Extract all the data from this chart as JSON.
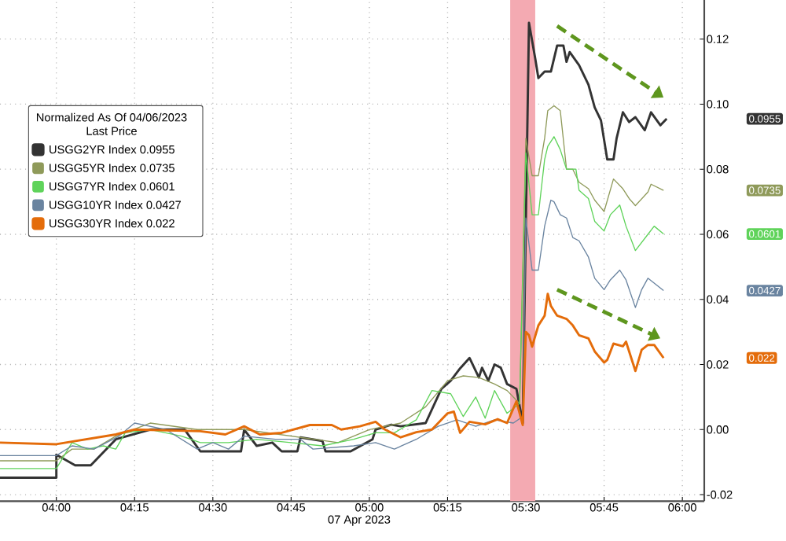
{
  "chart_data": {
    "type": "line",
    "xlabel": "07 Apr 2023",
    "legend_title": "Normalized As Of 04/06/2023 Last Price",
    "legend": "top left",
    "grid": true,
    "marker": "none",
    "line_style": "solid",
    "xlim": [
      3.82,
      6.07
    ],
    "ylim": [
      -0.022,
      0.132
    ],
    "xticks": [
      {
        "value": 4,
        "label": "04:00"
      },
      {
        "value": 4.25,
        "label": "04:15"
      },
      {
        "value": 4.5,
        "label": "04:30"
      },
      {
        "value": 4.75,
        "label": "04:45"
      },
      {
        "value": 5,
        "label": "05:00"
      },
      {
        "value": 5.25,
        "label": "05:15"
      },
      {
        "value": 5.5,
        "label": "05:30"
      },
      {
        "value": 5.75,
        "label": "05:45"
      },
      {
        "value": 6,
        "label": "06:00"
      }
    ],
    "yticks": [
      {
        "value": -0.02,
        "label": "-0.02"
      },
      {
        "value": 0,
        "label": "0.00"
      },
      {
        "value": 0.02,
        "label": "0.02"
      },
      {
        "value": 0.04,
        "label": "0.04"
      },
      {
        "value": 0.06,
        "label": "0.06"
      },
      {
        "value": 0.08,
        "label": "0.08"
      },
      {
        "value": 0.1,
        "label": "0.10"
      },
      {
        "value": 0.12,
        "label": "0.12"
      }
    ],
    "bands": [
      {
        "axis": "x",
        "from": 5.45,
        "to": 5.53,
        "color": "#f4aab2"
      }
    ],
    "series": [
      {
        "name": "USGG2YR Index 0.0955",
        "color": "#333333",
        "x": [
          3.82,
          4.0,
          4.0,
          4.06,
          4.11,
          4.19,
          4.3,
          4.41,
          4.46,
          4.59,
          4.6,
          4.64,
          4.69,
          4.72,
          4.77,
          4.78,
          4.85,
          4.86,
          4.94,
          5.01,
          5.02,
          5.07,
          5.1,
          5.18,
          5.23,
          5.26,
          5.29,
          5.32,
          5.35,
          5.36,
          5.38,
          5.4,
          5.42,
          5.44,
          5.47,
          5.49,
          5.51,
          5.53,
          5.54,
          5.56,
          5.58,
          5.6,
          5.62,
          5.63,
          5.64,
          5.67,
          5.7,
          5.72,
          5.74,
          5.76,
          5.78,
          5.79,
          5.81,
          5.83,
          5.85,
          5.88,
          5.9,
          5.93,
          5.95
        ],
        "values": [
          -0.0148,
          -0.0148,
          -0.0077,
          -0.011,
          -0.011,
          -0.003,
          0.0,
          0.0,
          -0.0067,
          -0.0067,
          0.0,
          -0.005,
          -0.004,
          -0.0067,
          -0.0067,
          -0.0024,
          -0.0035,
          -0.0067,
          -0.0067,
          -0.003,
          0.0,
          0.0015,
          0.001,
          0.002,
          0.0125,
          0.015,
          0.0188,
          0.022,
          0.016,
          0.019,
          0.015,
          0.02,
          0.019,
          0.014,
          0.0125,
          0.002,
          0.125,
          0.114,
          0.108,
          0.11,
          0.11,
          0.118,
          0.118,
          0.113,
          0.116,
          0.112,
          0.106,
          0.099,
          0.095,
          0.083,
          0.083,
          0.0895,
          0.0975,
          0.0945,
          0.096,
          0.092,
          0.0975,
          0.0935,
          0.0955
        ]
      },
      {
        "name": "USGG5YR Index 0.0735",
        "color": "#8f9a5a",
        "x": [
          3.82,
          4.0,
          4.05,
          4.12,
          4.19,
          4.3,
          4.45,
          4.6,
          4.75,
          4.9,
          5.0,
          5.1,
          5.18,
          5.25,
          5.3,
          5.35,
          5.4,
          5.44,
          5.48,
          5.5,
          5.52,
          5.54,
          5.56,
          5.57,
          5.59,
          5.61,
          5.63,
          5.65,
          5.67,
          5.7,
          5.72,
          5.75,
          5.78,
          5.81,
          5.83,
          5.85,
          5.89,
          5.9,
          5.94
        ],
        "values": [
          -0.0096,
          -0.0096,
          -0.006,
          -0.006,
          -0.002,
          0.002,
          0.0,
          0.0,
          -0.002,
          -0.004,
          0.0,
          0.002,
          0.007,
          0.015,
          0.0165,
          0.016,
          0.014,
          0.012,
          0.008,
          0.0895,
          0.078,
          0.078,
          0.0895,
          0.098,
          0.0995,
          0.098,
          0.08,
          0.08,
          0.076,
          0.074,
          0.0705,
          0.067,
          0.077,
          0.074,
          0.071,
          0.0688,
          0.073,
          0.0754,
          0.0735
        ]
      },
      {
        "name": "USGG7YR Index 0.0601",
        "color": "#5fd35a",
        "x": [
          3.82,
          4.0,
          4.05,
          4.1,
          4.15,
          4.19,
          4.22,
          4.3,
          4.4,
          4.46,
          4.55,
          4.64,
          4.75,
          4.85,
          4.95,
          5.02,
          5.08,
          5.15,
          5.2,
          5.26,
          5.3,
          5.34,
          5.37,
          5.4,
          5.44,
          5.48,
          5.5,
          5.52,
          5.54,
          5.56,
          5.57,
          5.59,
          5.61,
          5.63,
          5.66,
          5.67,
          5.7,
          5.72,
          5.75,
          5.77,
          5.8,
          5.82,
          5.85,
          5.89,
          5.91,
          5.94
        ],
        "values": [
          -0.012,
          -0.012,
          -0.004,
          -0.006,
          -0.005,
          -0.006,
          -0.001,
          0.0,
          -0.002,
          -0.004,
          -0.004,
          -0.003,
          -0.004,
          -0.005,
          -0.003,
          -0.001,
          -0.001,
          0.003,
          0.012,
          0.011,
          0.004,
          0.01,
          0.0035,
          0.012,
          0.005,
          0.008,
          0.085,
          0.066,
          0.066,
          0.083,
          0.087,
          0.09,
          0.086,
          0.08,
          0.08,
          0.0735,
          0.071,
          0.064,
          0.061,
          0.066,
          0.069,
          0.0625,
          0.055,
          0.06,
          0.0625,
          0.0601
        ]
      },
      {
        "name": "USGG10YR Index 0.0427",
        "color": "#6a84a0",
        "x": [
          3.82,
          4.0,
          4.05,
          4.12,
          4.2,
          4.25,
          4.35,
          4.45,
          4.5,
          4.55,
          4.6,
          4.7,
          4.78,
          4.82,
          4.95,
          5.02,
          5.08,
          5.15,
          5.22,
          5.28,
          5.34,
          5.4,
          5.46,
          5.49,
          5.5,
          5.52,
          5.54,
          5.56,
          5.58,
          5.59,
          5.61,
          5.63,
          5.65,
          5.67,
          5.7,
          5.72,
          5.75,
          5.77,
          5.8,
          5.82,
          5.85,
          5.87,
          5.89,
          5.94
        ],
        "values": [
          -0.008,
          -0.008,
          -0.005,
          -0.006,
          -0.002,
          0.002,
          0.0,
          -0.006,
          -0.004,
          -0.006,
          -0.002,
          -0.003,
          -0.003,
          -0.006,
          -0.005,
          -0.004,
          -0.006,
          -0.003,
          0.001,
          0.003,
          0.001,
          0.003,
          0.002,
          0.004,
          0.065,
          0.049,
          0.049,
          0.0625,
          0.0705,
          0.07,
          0.066,
          0.065,
          0.059,
          0.058,
          0.053,
          0.0465,
          0.043,
          0.046,
          0.049,
          0.046,
          0.0375,
          0.043,
          0.0465,
          0.0427
        ]
      },
      {
        "name": "USGG30YR Index 0.022",
        "color": "#e46c0a",
        "x": [
          3.82,
          4.0,
          4.03,
          4.19,
          4.25,
          4.46,
          4.54,
          4.6,
          4.65,
          4.72,
          4.81,
          4.88,
          4.91,
          4.97,
          5.02,
          5.05,
          5.1,
          5.15,
          5.2,
          5.25,
          5.27,
          5.29,
          5.32,
          5.37,
          5.41,
          5.44,
          5.47,
          5.49,
          5.5,
          5.51,
          5.52,
          5.54,
          5.56,
          5.57,
          5.58,
          5.6,
          5.63,
          5.65,
          5.67,
          5.7,
          5.72,
          5.75,
          5.76,
          5.78,
          5.81,
          5.82,
          5.85,
          5.87,
          5.89,
          5.91,
          5.94
        ],
        "values": [
          -0.004,
          -0.0045,
          -0.004,
          -0.0015,
          0.0,
          -0.0005,
          -0.0015,
          0.001,
          -0.0015,
          -0.001,
          0.0014,
          0.0014,
          0.0,
          0.001,
          0.0024,
          0.0,
          -0.0024,
          -0.0008,
          0.0,
          0.005,
          0.0055,
          -0.001,
          0.0024,
          0.0016,
          0.0032,
          0.002,
          0.0087,
          0.0014,
          0.03,
          0.029,
          0.0255,
          0.032,
          0.035,
          0.0417,
          0.038,
          0.035,
          0.034,
          0.032,
          0.029,
          0.028,
          0.024,
          0.0206,
          0.0214,
          0.0264,
          0.0256,
          0.027,
          0.018,
          0.0245,
          0.026,
          0.026,
          0.022
        ]
      }
    ],
    "annotations": [
      "0.0955",
      "0.0735",
      "0.0601",
      "0.0427",
      "0.022"
    ]
  }
}
